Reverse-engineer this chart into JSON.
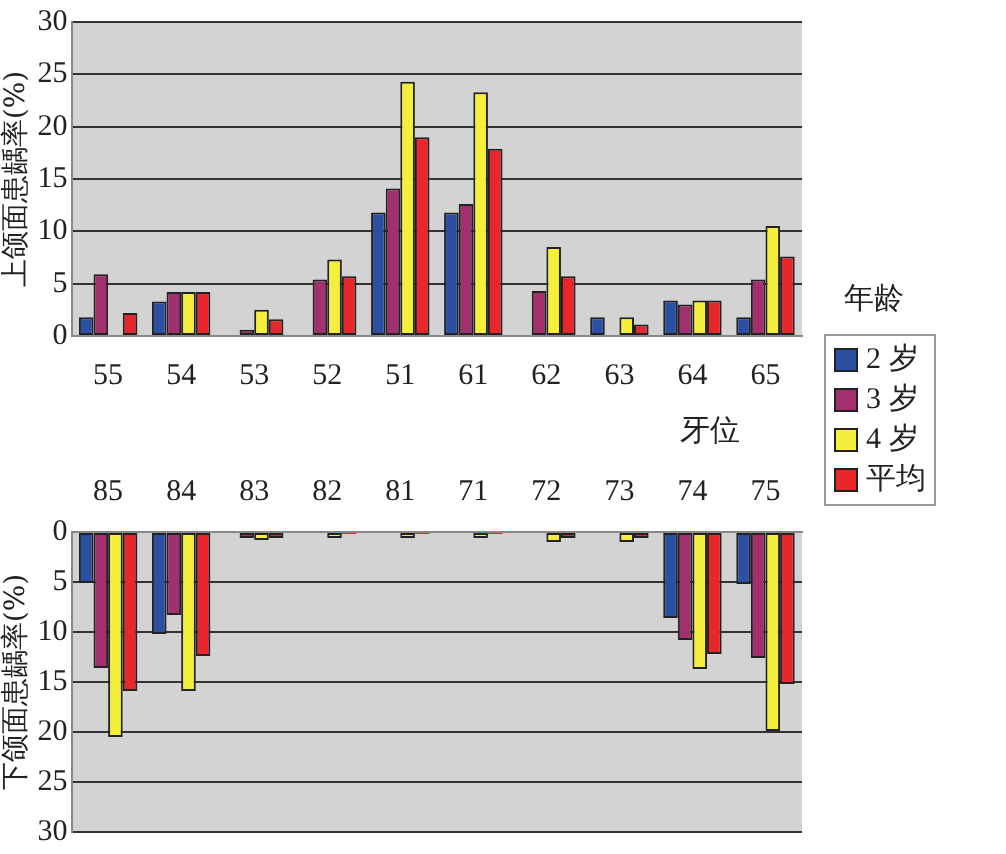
{
  "chart_data": [
    {
      "type": "bar",
      "ylabel": "上颌面患龋率(%)",
      "xlabel": "牙位",
      "legend_title": "年龄",
      "legend": "bottom right",
      "grid": "y",
      "categories": [
        "55",
        "54",
        "53",
        "52",
        "51",
        "61",
        "62",
        "63",
        "64",
        "65"
      ],
      "ylim": [
        0,
        30
      ],
      "yticks": [
        0,
        5,
        10,
        15,
        20,
        25,
        30
      ],
      "series": [
        {
          "name": "2 岁",
          "color": "#2b4fa3",
          "values": [
            1.8,
            3.3,
            0,
            0,
            11.8,
            11.8,
            0,
            1.8,
            3.4,
            1.8
          ]
        },
        {
          "name": "3 岁",
          "color": "#a3306e",
          "values": [
            5.9,
            4.2,
            0.6,
            5.4,
            14.1,
            12.6,
            4.3,
            0,
            3.0,
            5.4
          ]
        },
        {
          "name": "4 岁",
          "color": "#f5ee3a",
          "values": [
            0,
            4.2,
            2.5,
            7.3,
            24.3,
            23.3,
            8.5,
            1.8,
            3.4,
            10.5
          ]
        },
        {
          "name": "平均",
          "color": "#e8262b",
          "values": [
            2.2,
            4.2,
            1.6,
            5.7,
            19.0,
            17.9,
            5.7,
            1.1,
            3.4,
            7.6
          ]
        }
      ]
    },
    {
      "type": "bar",
      "ylabel": "下颌面患龋率(%)",
      "grid": "y",
      "categories": [
        "85",
        "84",
        "83",
        "82",
        "81",
        "71",
        "72",
        "73",
        "74",
        "75"
      ],
      "ylim": [
        30,
        0
      ],
      "yticks": [
        0,
        5,
        10,
        15,
        20,
        25,
        30
      ],
      "series": [
        {
          "color": "#2b4fa3",
          "values": [
            5.1,
            10.2,
            null,
            null,
            null,
            null,
            null,
            null,
            8.6,
            5.2
          ]
        },
        {
          "color": "#a3306e",
          "values": [
            13.6,
            8.3,
            0.6,
            null,
            null,
            null,
            null,
            null,
            10.8,
            12.6
          ]
        },
        {
          "color": "#f5ee3a",
          "values": [
            20.5,
            15.9,
            0.8,
            0.6,
            0.6,
            0.6,
            1.0,
            1.0,
            13.7,
            19.9
          ]
        },
        {
          "color": "#e8262b",
          "values": [
            15.9,
            12.4,
            0.6,
            0.2,
            0.2,
            0.2,
            0.6,
            0.6,
            12.2,
            15.2
          ]
        }
      ]
    }
  ]
}
